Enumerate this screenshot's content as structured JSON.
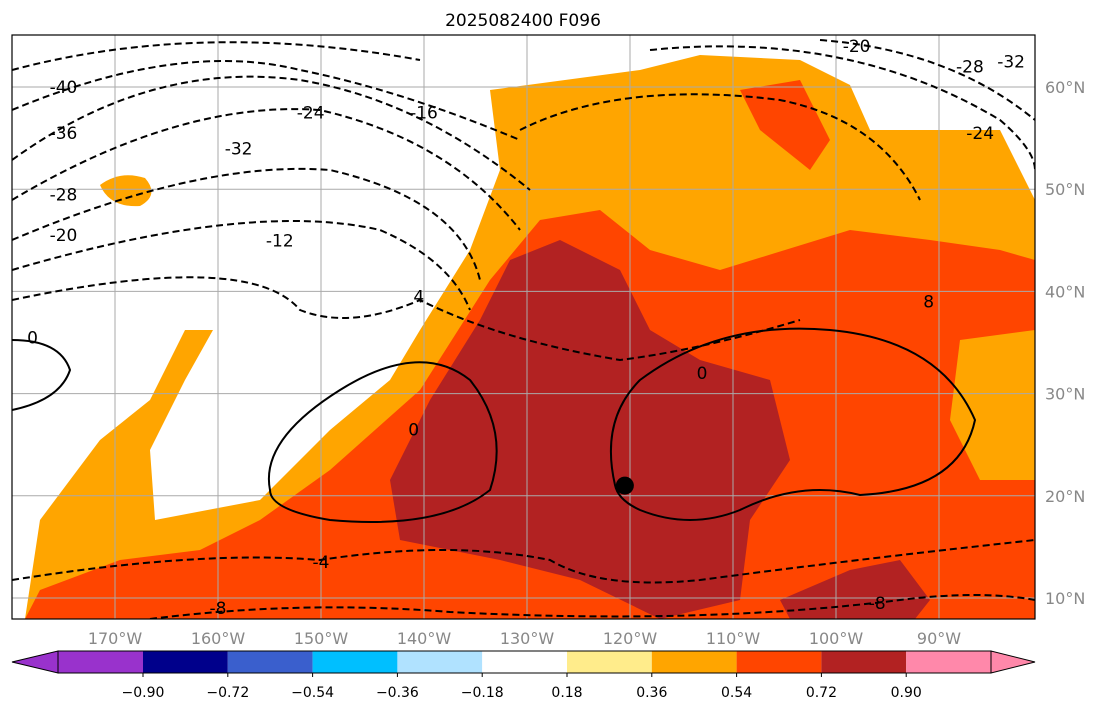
{
  "title": "2025082400 F096",
  "map": {
    "lon_ticks": [
      "170°W",
      "160°W",
      "150°W",
      "140°W",
      "130°W",
      "120°W",
      "110°W",
      "100°W",
      "90°W"
    ],
    "lon_values": [
      -170,
      -160,
      -150,
      -140,
      -130,
      -120,
      -110,
      -100,
      -90
    ],
    "lat_ticks": [
      "60°N",
      "50°N",
      "40°N",
      "30°N",
      "20°N",
      "10°N"
    ],
    "lat_values": [
      60,
      50,
      40,
      30,
      20,
      10
    ],
    "extent": {
      "lon": [
        -180,
        -80.5
      ],
      "lat": [
        8,
        65
      ]
    },
    "center_marker": {
      "lon": -120.5,
      "lat": 21
    },
    "contour_labels": [
      {
        "text": "-40",
        "lon": -175,
        "lat": 60
      },
      {
        "text": "-36",
        "lon": -175,
        "lat": 55.5
      },
      {
        "text": "-28",
        "lon": -175,
        "lat": 49.5
      },
      {
        "text": "-20",
        "lon": -175,
        "lat": 45.5
      },
      {
        "text": "-32",
        "lon": -158,
        "lat": 54
      },
      {
        "text": "-24",
        "lon": -151,
        "lat": 57.5
      },
      {
        "text": "-16",
        "lon": -140,
        "lat": 57.5
      },
      {
        "text": "-12",
        "lon": -154,
        "lat": 45
      },
      {
        "text": "4",
        "lon": -140.5,
        "lat": 39.5
      },
      {
        "text": "0",
        "lon": -178,
        "lat": 35.5
      },
      {
        "text": "0",
        "lon": -141,
        "lat": 26.5
      },
      {
        "text": "0",
        "lon": -113,
        "lat": 32
      },
      {
        "text": "-4",
        "lon": -150,
        "lat": 13.5
      },
      {
        "text": "-8",
        "lon": -160,
        "lat": 9
      },
      {
        "text": "-8",
        "lon": -96,
        "lat": 9.5
      },
      {
        "text": "-20",
        "lon": -98,
        "lat": 64
      },
      {
        "text": "-28",
        "lon": -87,
        "lat": 62
      },
      {
        "text": "-32",
        "lon": -83,
        "lat": 62.5
      },
      {
        "text": "-24",
        "lon": -86,
        "lat": 55.5
      },
      {
        "text": "8",
        "lon": -91,
        "lat": 39
      }
    ]
  },
  "colorbar": {
    "ticks": [
      "−0.90",
      "−0.72",
      "−0.54",
      "−0.36",
      "−0.18",
      "0.18",
      "0.36",
      "0.54",
      "0.72",
      "0.90"
    ],
    "colors": [
      "#9932cc",
      "#00008b",
      "#3a5fcd",
      "#00bfff",
      "#b0e2ff",
      "#ffffff",
      "#ffec8b",
      "#ffa500",
      "#ff4500",
      "#b22222",
      "#ff88aa"
    ]
  }
}
